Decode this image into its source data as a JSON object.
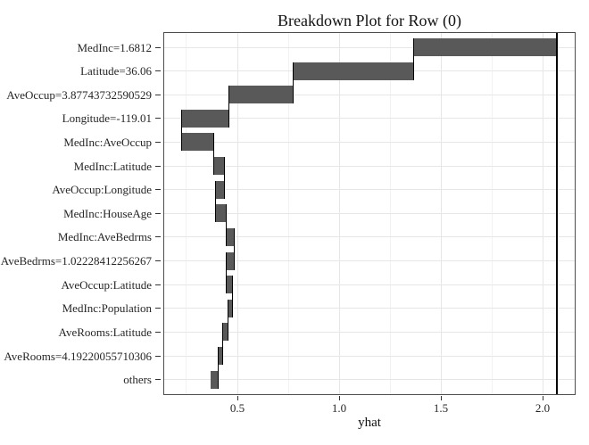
{
  "chart_data": {
    "type": "bar",
    "variant": "waterfall-breakdown",
    "title": "Breakdown Plot for Row (0)",
    "xlabel": "yhat",
    "ylabel": "",
    "xlim": [
      0.136,
      2.162
    ],
    "x_major_ticks": [
      0.5,
      1.0,
      1.5,
      2.0
    ],
    "x_tick_labels": [
      "0.5",
      "1.0",
      "1.5",
      "2.0"
    ],
    "x_minor_gridlines": [
      0.25,
      0.75,
      1.25,
      1.75
    ],
    "grid": "on",
    "legend": "none",
    "intercept_line": 2.07,
    "rows": [
      {
        "label": "MedInc=1.6812",
        "start": 1.364,
        "end": 2.07
      },
      {
        "label": "Latitude=36.06",
        "start": 0.772,
        "end": 1.364
      },
      {
        "label": "AveOccup=3.87743732590529",
        "start": 0.46,
        "end": 0.772
      },
      {
        "label": "Longitude=-119.01",
        "start": 0.228,
        "end": 0.46
      },
      {
        "label": "MedInc:AveOccup",
        "start": 0.228,
        "end": 0.383
      },
      {
        "label": "MedInc:Latitude",
        "start": 0.383,
        "end": 0.438
      },
      {
        "label": "AveOccup:Longitude",
        "start": 0.391,
        "end": 0.438
      },
      {
        "label": "MedInc:HouseAge",
        "start": 0.391,
        "end": 0.443
      },
      {
        "label": "MedInc:AveBedrms",
        "start": 0.443,
        "end": 0.483
      },
      {
        "label": "AveBedrms=1.02228412256267",
        "start": 0.447,
        "end": 0.483
      },
      {
        "label": "AveOccup:Latitude",
        "start": 0.447,
        "end": 0.474
      },
      {
        "label": "MedInc:Population",
        "start": 0.452,
        "end": 0.474
      },
      {
        "label": "AveRooms:Latitude",
        "start": 0.426,
        "end": 0.452
      },
      {
        "label": "AveRooms=4.19220055710306",
        "start": 0.404,
        "end": 0.426
      },
      {
        "label": "others",
        "start": 0.369,
        "end": 0.404
      }
    ],
    "connectors": [
      1.364,
      0.772,
      0.46,
      0.228,
      0.383,
      0.438,
      0.391,
      0.443,
      0.483,
      0.447,
      0.474,
      0.452,
      0.426,
      0.404
    ],
    "colors": {
      "bar": "#595959",
      "connector": "#000000",
      "intercept_line": "#000000",
      "grid_major": "#e6e6e6",
      "grid_minor": "#f2f2f2",
      "panel_border": "#4d4d4d",
      "tick": "#333333",
      "text": "#262626"
    }
  }
}
